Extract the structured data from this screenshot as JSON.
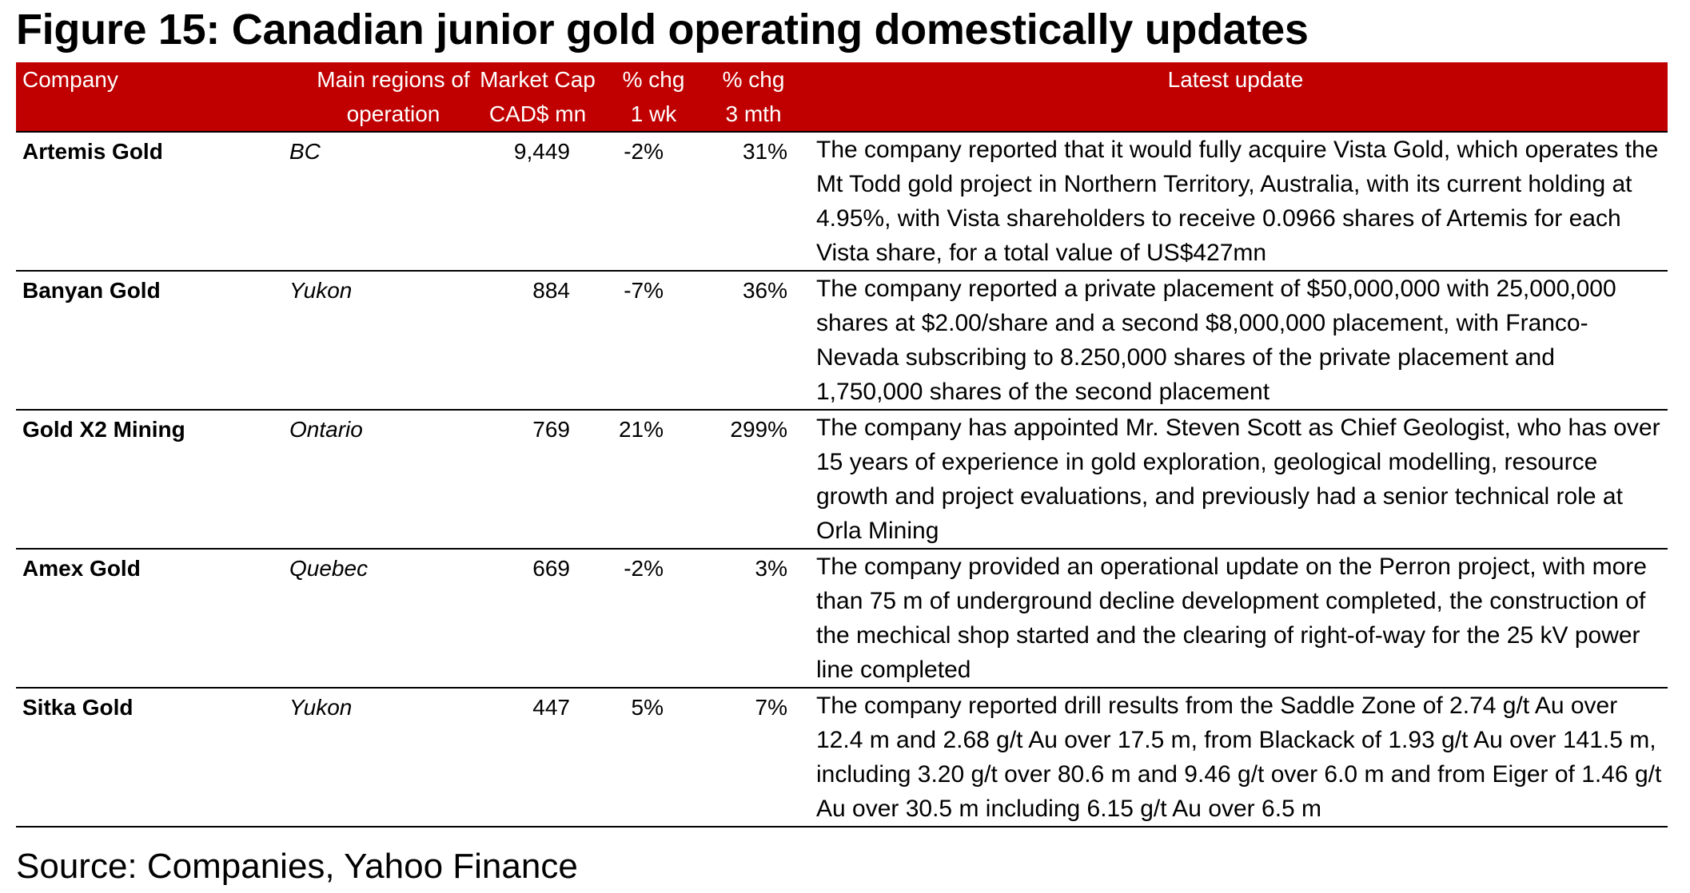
{
  "title": "Figure 15: Canadian junior gold operating domestically updates",
  "table": {
    "headers": {
      "company": "Company",
      "region_line1": "Main regions of",
      "region_line2": "operation",
      "cap_line1": "Market Cap",
      "cap_line2": "CAD$ mn",
      "wk_line1": "% chg",
      "wk_line2": "1 wk",
      "mth_line1": "% chg",
      "mth_line2": "3 mth",
      "update": "Latest update"
    },
    "rows": [
      {
        "company": "Artemis Gold",
        "region": "BC",
        "market_cap": "9,449",
        "chg_1wk": "-2%",
        "chg_3mth": "31%",
        "update": "The company reported that it would fully acquire Vista Gold, which operates the Mt Todd gold project in Northern Territory, Australia, with its current holding at 4.95%, with Vista shareholders to receive 0.0966 shares of Artemis for each Vista share, for a total value of US$427mn"
      },
      {
        "company": "Banyan Gold",
        "region": "Yukon",
        "market_cap": "884",
        "chg_1wk": "-7%",
        "chg_3mth": "36%",
        "update": "The company reported a private placement of $50,000,000 with 25,000,000 shares at $2.00/share and a second $8,000,000 placement, with Franco-Nevada subscribing to 8.250,000 shares of the private placement and 1,750,000 shares of the second placement"
      },
      {
        "company": "Gold X2 Mining",
        "region": "Ontario",
        "market_cap": "769",
        "chg_1wk": "21%",
        "chg_3mth": "299%",
        "update": "The company has appointed Mr. Steven Scott as Chief Geologist, who has over 15 years of experience in gold exploration, geological modelling, resource growth and project evaluations, and previously had a senior technical role at Orla Mining"
      },
      {
        "company": "Amex Gold",
        "region": "Quebec",
        "market_cap": "669",
        "chg_1wk": "-2%",
        "chg_3mth": "3%",
        "update": "The company provided an operational update on the Perron project, with more than 75 m of underground decline development completed, the construction of the mechical shop started and the clearing of right-of-way for the 25 kV power line completed"
      },
      {
        "company": "Sitka Gold",
        "region": "Yukon",
        "market_cap": "447",
        "chg_1wk": "5%",
        "chg_3mth": "7%",
        "update": "The company reported drill results from the Saddle Zone of 2.74 g/t Au over 12.4 m and 2.68 g/t Au over 17.5 m, from Blackack of 1.93 g/t Au over 141.5 m, including 3.20 g/t over 80.6 m and 9.46 g/t over 6.0 m and from Eiger of 1.46 g/t Au over 30.5 m including 6.15 g/t Au over 6.5 m"
      }
    ]
  },
  "source": "Source: Companies, Yahoo Finance",
  "colors": {
    "header_bg": "#c00000",
    "header_text": "#ffffff"
  }
}
